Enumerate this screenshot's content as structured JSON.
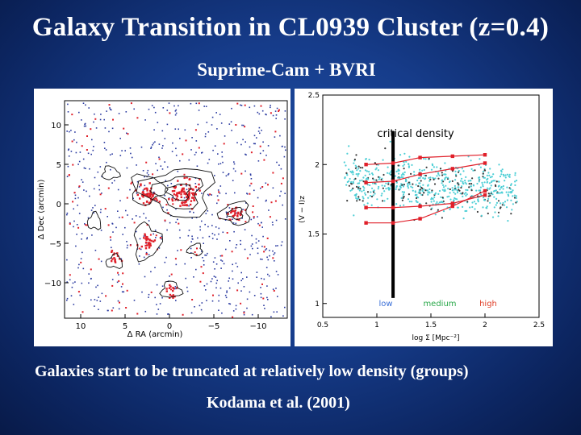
{
  "slide": {
    "title": "Galaxy Transition in CL0939 Cluster (z=0.4)",
    "subtitle": "Suprime-Cam + BVRI",
    "caption": "Galaxies start to be truncated at relatively low density (groups)",
    "citation": "Kodama et al. (2001)"
  },
  "left_plot": {
    "xlabel": "Δ RA (arcmin)",
    "ylabel": "Δ Dec (arcmin)",
    "x_ticks": [
      "10",
      "5",
      "0",
      "−5",
      "−10"
    ],
    "y_ticks": [
      "10",
      "5",
      "0",
      "−5",
      "−10"
    ],
    "colors": {
      "red": "#e0202a",
      "blue": "#2a3aa0",
      "contour": "#111111"
    }
  },
  "chart_data": {
    "type": "scatter",
    "xlabel": "log Σ [Mpc⁻²]",
    "ylabel": "(V − I)z",
    "xlim": [
      0.5,
      2.5
    ],
    "ylim": [
      0.9,
      2.5
    ],
    "x_ticks": [
      "0.5",
      "1",
      "1.5",
      "2",
      "2.5"
    ],
    "y_ticks": [
      "2.5",
      "2",
      "1.5",
      "1"
    ],
    "annotation": "critical density",
    "critical_density_x": 1.15,
    "region_labels": [
      {
        "text": "low",
        "color": "#3a6fd8"
      },
      {
        "text": "medium",
        "color": "#2aa84a"
      },
      {
        "text": "high",
        "color": "#e0402a"
      }
    ],
    "series": [
      {
        "x": [
          0.9,
          1.15,
          1.4,
          1.7,
          2.0
        ],
        "values": [
          2.0,
          2.01,
          2.05,
          2.06,
          2.07
        ]
      },
      {
        "x": [
          0.9,
          1.15,
          1.4,
          1.7,
          2.0
        ],
        "values": [
          1.87,
          1.88,
          1.93,
          1.97,
          2.01
        ]
      },
      {
        "x": [
          0.9,
          1.15,
          1.4,
          1.7,
          2.0
        ],
        "values": [
          1.69,
          1.69,
          1.7,
          1.72,
          1.78
        ]
      },
      {
        "x": [
          0.9,
          1.15,
          1.4,
          1.7,
          2.0
        ],
        "values": [
          1.58,
          1.58,
          1.61,
          1.7,
          1.81
        ]
      }
    ],
    "colors": {
      "points": "#4ecfd6",
      "series": "#e0202a"
    }
  }
}
